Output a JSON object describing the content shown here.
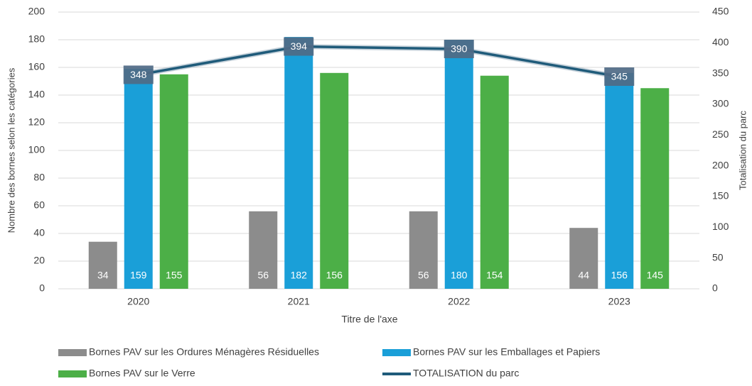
{
  "chart_data": {
    "type": "bar_line",
    "x_axis_label": "Titre de l'axe",
    "y_axis_label": "Nombre des bornes selon les catégories",
    "y2_axis_label": "Totalisation du parc",
    "categories": [
      "2020",
      "2021",
      "2022",
      "2023"
    ],
    "series": [
      {
        "name": "Bornes PAV sur les Ordures Ménagères Résiduelles",
        "type": "bar",
        "color": "#8c8c8c",
        "values": [
          34,
          56,
          56,
          44
        ]
      },
      {
        "name": "Bornes PAV sur les Emballages et Papiers",
        "type": "bar",
        "color": "#1a9fd8",
        "values": [
          159,
          182,
          180,
          156
        ]
      },
      {
        "name": "Bornes PAV sur le Verre",
        "type": "bar",
        "color": "#4caf47",
        "values": [
          155,
          156,
          154,
          145
        ]
      },
      {
        "name": "TOTALISATION du parc",
        "type": "line",
        "axis": "y2",
        "color": "#1f5b7a",
        "values": [
          348,
          394,
          390,
          345
        ]
      }
    ],
    "ylim": [
      0,
      200
    ],
    "yticks": [
      0,
      20,
      40,
      60,
      80,
      100,
      120,
      140,
      160,
      180,
      200
    ],
    "y2lim": [
      0,
      450
    ],
    "y2ticks": [
      0,
      50,
      100,
      150,
      200,
      250,
      300,
      350,
      400,
      450
    ],
    "grid": true,
    "legend": "bottom"
  }
}
